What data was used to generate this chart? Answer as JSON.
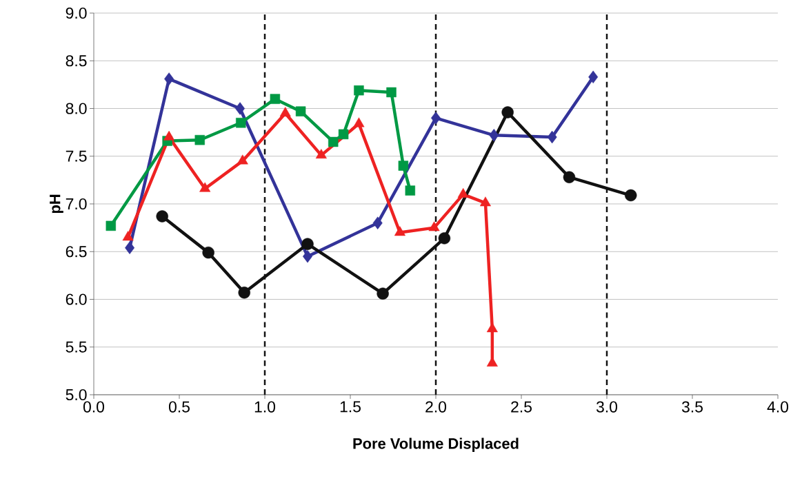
{
  "chart_data": {
    "type": "line",
    "xlabel": "Pore Volume Displaced",
    "ylabel": "pH",
    "xlim": [
      0,
      4
    ],
    "ylim": [
      5,
      9
    ],
    "xticks": [
      {
        "value": 0,
        "label": "0.0"
      },
      {
        "value": 0.5,
        "label": "0.5"
      },
      {
        "value": 1,
        "label": "1.0"
      },
      {
        "value": 1.5,
        "label": "1.5"
      },
      {
        "value": 2,
        "label": "2.0"
      },
      {
        "value": 2.5,
        "label": "2.5"
      },
      {
        "value": 3,
        "label": "3.0"
      },
      {
        "value": 3.5,
        "label": "3.5"
      },
      {
        "value": 4,
        "label": "4.0"
      }
    ],
    "yticks": [
      {
        "value": 5,
        "label": "5.0"
      },
      {
        "value": 5.5,
        "label": "5.5"
      },
      {
        "value": 6,
        "label": "6.0"
      },
      {
        "value": 6.5,
        "label": "6.5"
      },
      {
        "value": 7,
        "label": "7.0"
      },
      {
        "value": 7.5,
        "label": "7.5"
      },
      {
        "value": 8,
        "label": "8.0"
      },
      {
        "value": 8.5,
        "label": "8.5"
      },
      {
        "value": 9,
        "label": "9.0"
      }
    ],
    "grid": "y",
    "line_style": "solid",
    "ref_lines": [
      {
        "axis": "x",
        "value": 1,
        "line_style": "dashed",
        "color": "#111111"
      },
      {
        "axis": "x",
        "value": 2,
        "line_style": "dashed",
        "color": "#111111"
      },
      {
        "axis": "x",
        "value": 3,
        "line_style": "dashed",
        "color": "#111111"
      }
    ],
    "series": [
      {
        "color": "#333399",
        "marker": "diamond",
        "x": [
          0.21,
          0.44,
          0.855,
          1.25,
          1.66,
          2.0,
          2.34,
          2.68,
          2.92
        ],
        "values": [
          6.54,
          8.31,
          8.0,
          6.45,
          6.8,
          7.9,
          7.72,
          7.7,
          8.33
        ]
      },
      {
        "color": "#009944",
        "marker": "square",
        "x": [
          0.1,
          0.43,
          0.62,
          0.86,
          1.06,
          1.21,
          1.4,
          1.46,
          1.55,
          1.74,
          1.81,
          1.85
        ],
        "values": [
          6.77,
          7.66,
          7.67,
          7.85,
          8.1,
          7.97,
          7.65,
          7.73,
          8.19,
          8.17,
          7.4,
          7.14
        ]
      },
      {
        "color": "#ee2222",
        "marker": "triangle",
        "x": [
          0.2,
          0.44,
          0.65,
          0.87,
          1.12,
          1.33,
          1.55,
          1.79,
          1.99,
          2.16,
          2.29,
          2.33,
          2.33
        ],
        "values": [
          6.65,
          7.7,
          7.16,
          7.45,
          7.95,
          7.51,
          7.84,
          6.7,
          6.75,
          7.1,
          7.01,
          5.69,
          5.33
        ]
      },
      {
        "color": "#111111",
        "marker": "circle",
        "x": [
          0.4,
          0.67,
          0.88,
          1.25,
          1.69,
          2.05,
          2.42,
          2.78,
          3.14
        ],
        "values": [
          6.87,
          6.49,
          6.07,
          6.58,
          6.06,
          6.64,
          7.96,
          7.28,
          7.09
        ]
      }
    ]
  }
}
